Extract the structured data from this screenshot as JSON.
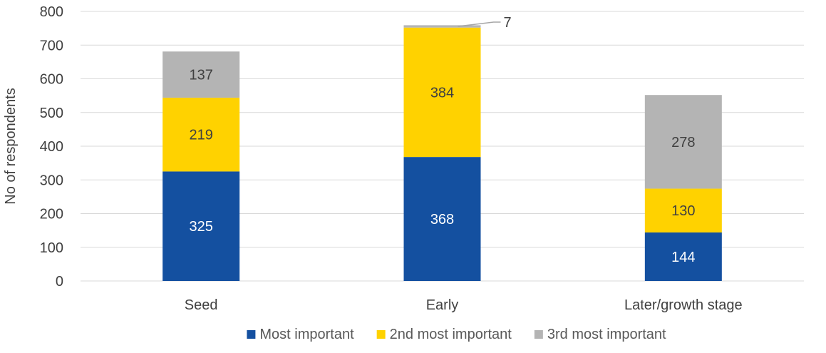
{
  "chart_data": {
    "type": "bar",
    "stacked": true,
    "title": "",
    "xlabel": "",
    "ylabel": "No of respondents",
    "ylim": [
      0,
      800
    ],
    "ytick_step": 100,
    "yticks": [
      "0",
      "100",
      "200",
      "300",
      "400",
      "500",
      "600",
      "700",
      "800"
    ],
    "grid": true,
    "legend_position": "bottom",
    "categories": [
      "Seed",
      "Early",
      "Later/growth stage"
    ],
    "series": [
      {
        "name": "Most important",
        "color": "#1450a0",
        "label_color": "#ffffff",
        "values": [
          325,
          368,
          144
        ],
        "labels": [
          "325",
          "368",
          "144"
        ]
      },
      {
        "name": "2nd most important",
        "color": "#ffd200",
        "label_color": "#404040",
        "values": [
          219,
          384,
          130
        ],
        "labels": [
          "219",
          "384",
          "130"
        ]
      },
      {
        "name": "3rd most important",
        "color": "#b4b4b4",
        "label_color": "#404040",
        "values": [
          137,
          7,
          278
        ],
        "labels": [
          "137",
          "7",
          "278"
        ]
      }
    ]
  }
}
